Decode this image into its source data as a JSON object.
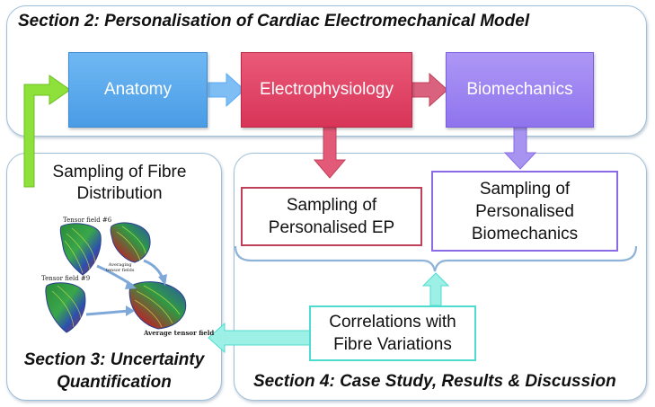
{
  "section2": {
    "title": "Section 2: Personalisation of Cardiac Electromechanical Model"
  },
  "flow": {
    "anatomy": "Anatomy",
    "electrophysiology": "Electrophysiology",
    "biomechanics": "Biomechanics"
  },
  "section3": {
    "title_line1": "Section 3: Uncertainty",
    "title_line2": "Quantification",
    "sampling_line1": "Sampling of Fibre",
    "sampling_line2": "Distribution",
    "figure": {
      "tensor6": "Tensor field #6",
      "tensor9": "Tensor field #9",
      "averaging_line1": "Averaging",
      "averaging_line2": "tensor fields",
      "average": "Average tensor field"
    }
  },
  "section4": {
    "title": "Section 4: Case Study, Results & Discussion",
    "ep_line1": "Sampling of",
    "ep_line2": "Personalised EP",
    "bio_line1": "Sampling of",
    "bio_line2": "Personalised",
    "bio_line3": "Biomechanics",
    "corr_line1": "Correlations with",
    "corr_line2": "Fibre Variations"
  },
  "colors": {
    "anatomy": "#5aaaf0",
    "electrophysiology": "#e2405f",
    "biomechanics": "#9b82f0",
    "green_arrow": "#8ee03a",
    "ep_border": "#c0405a",
    "bio_border": "#8a6ae6",
    "corr_border": "#4fdcd0"
  }
}
